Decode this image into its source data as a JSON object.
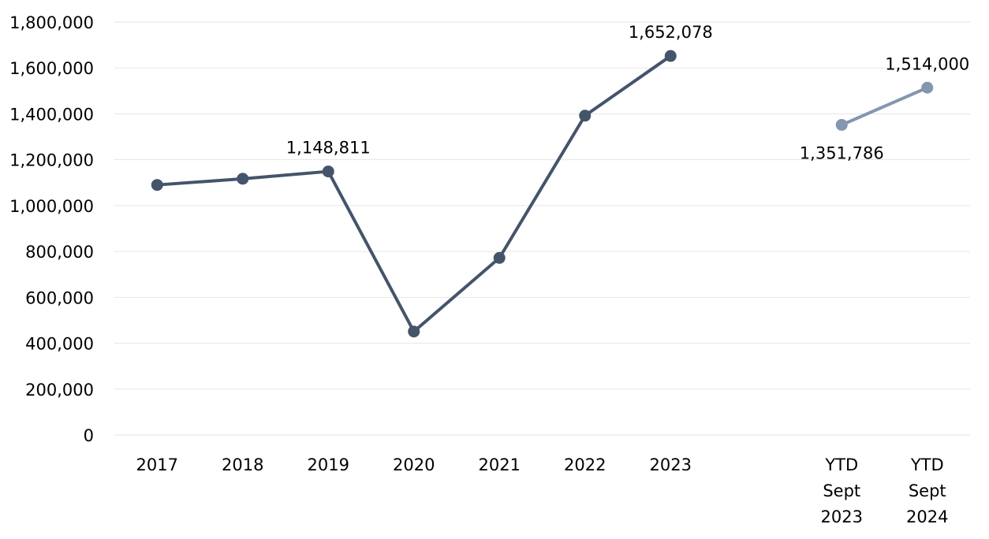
{
  "chart_data": {
    "type": "line",
    "title": "",
    "xlabel": "",
    "ylabel": "",
    "ylim": [
      0,
      1800000
    ],
    "yticks": [
      0,
      200000,
      400000,
      600000,
      800000,
      1000000,
      1200000,
      1400000,
      1600000,
      1800000
    ],
    "ytick_labels": [
      "0",
      "200,000",
      "400,000",
      "600,000",
      "800,000",
      "1,000,000",
      "1,200,000",
      "1,400,000",
      "1,600,000",
      "1,800,000"
    ],
    "grid": true,
    "legend": "none",
    "categories": [
      "2017",
      "2018",
      "2019",
      "2020",
      "2021",
      "2022",
      "2023",
      "",
      "YTD\nSept\n2023",
      "YTD\nSept\n2024"
    ],
    "series": [
      {
        "color": "#44546a",
        "x": [
          "2017",
          "2018",
          "2019",
          "2020",
          "2021",
          "2022",
          "2023"
        ],
        "values": [
          1090000,
          1117000,
          1148811,
          451000,
          772000,
          1392000,
          1652078
        ],
        "labels": [
          "",
          "",
          "1,148,811",
          "",
          "",
          "",
          "1,652,078"
        ]
      },
      {
        "color": "#8496b0",
        "x": [
          "YTD\nSept\n2023",
          "YTD\nSept\n2024"
        ],
        "values": [
          1351786,
          1514000
        ],
        "labels": [
          "1,351,786",
          "1,514,000"
        ]
      }
    ]
  }
}
